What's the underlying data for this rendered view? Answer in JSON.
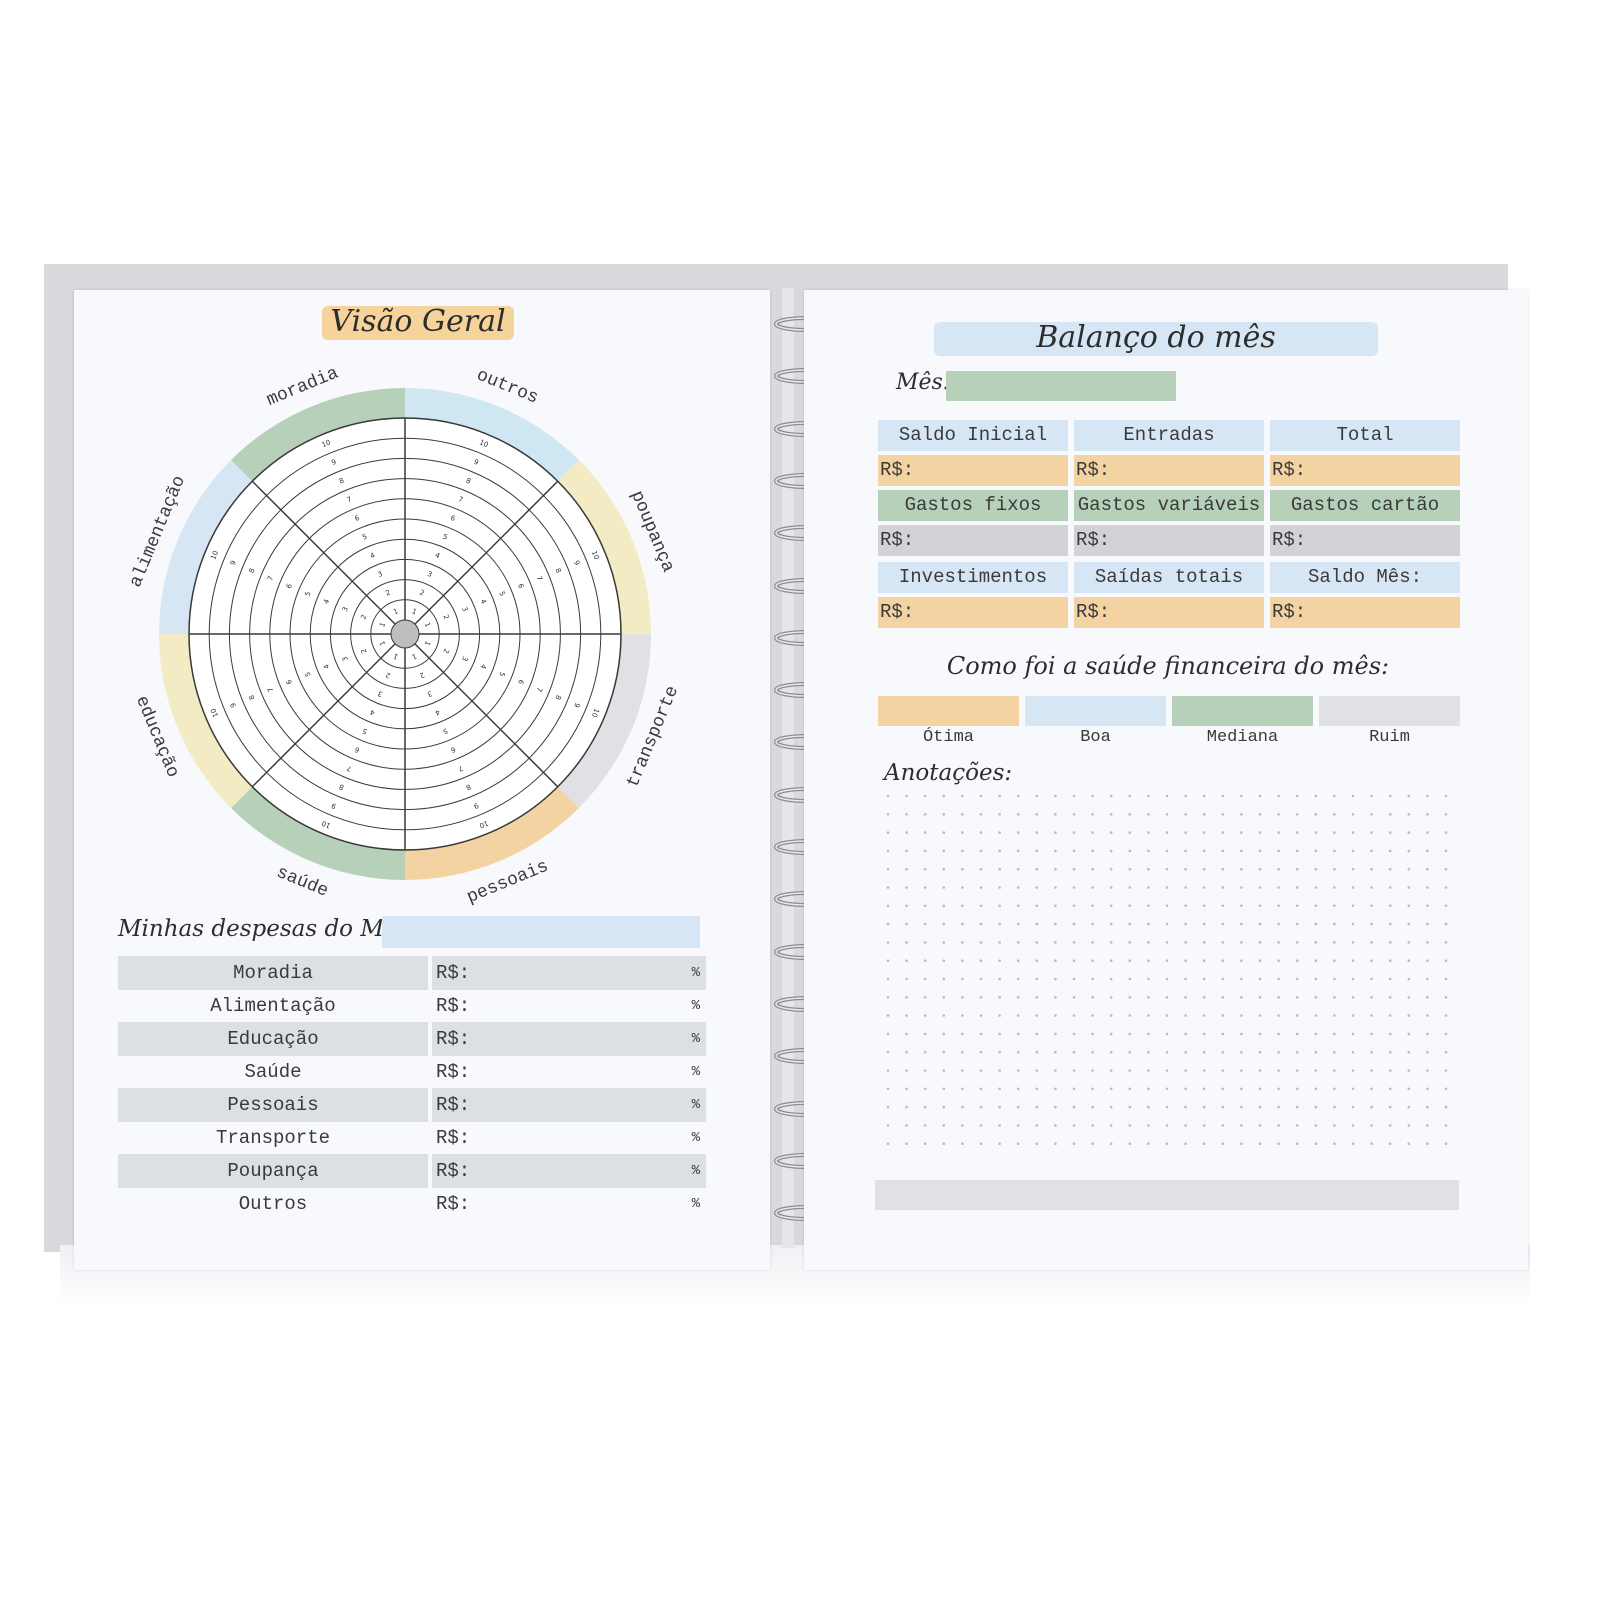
{
  "left_page": {
    "title": "Visão Geral",
    "wheel": {
      "segments": [
        {
          "label": "outros",
          "color": "#cfe7f3"
        },
        {
          "label": "poupança",
          "color": "#f3ebc3"
        },
        {
          "label": "transporte",
          "color": "#dfe1e4"
        },
        {
          "label": "pessoais",
          "color": "#f4d3a2"
        },
        {
          "label": "saúde",
          "color": "#b7d0b9"
        },
        {
          "label": "educação",
          "color": "#f3ebc3"
        },
        {
          "label": "alimentação",
          "color": "#d7e6f4"
        },
        {
          "label": "moradia",
          "color": "#b7d0b9"
        }
      ],
      "scale": [
        1,
        2,
        3,
        4,
        5,
        6,
        7,
        8,
        9,
        10
      ]
    },
    "expenses_label": "Minhas despesas do Mês :",
    "expenses": [
      {
        "category": "Moradia",
        "value_label": "R$:",
        "percent": "%"
      },
      {
        "category": "Alimentação",
        "value_label": "R$:",
        "percent": "%"
      },
      {
        "category": "Educação",
        "value_label": "R$:",
        "percent": "%"
      },
      {
        "category": "Saúde",
        "value_label": "R$:",
        "percent": "%"
      },
      {
        "category": "Pessoais",
        "value_label": "R$:",
        "percent": "%"
      },
      {
        "category": "Transporte",
        "value_label": "R$:",
        "percent": "%"
      },
      {
        "category": "Poupança",
        "value_label": "R$:",
        "percent": "%"
      },
      {
        "category": "Outros",
        "value_label": "R$:",
        "percent": "%"
      }
    ]
  },
  "right_page": {
    "title": "Balanço do mês",
    "month_label": "Mês:",
    "summary": [
      {
        "header": "Saldo Inicial",
        "value": "R$:"
      },
      {
        "header": "Entradas",
        "value": "R$:"
      },
      {
        "header": "Total",
        "value": "R$:"
      },
      {
        "header": "Gastos fixos",
        "value": "R$:"
      },
      {
        "header": "Gastos variáveis",
        "value": "R$:"
      },
      {
        "header": "Gastos cartão",
        "value": "R$:"
      },
      {
        "header": "Investimentos",
        "value": "R$:"
      },
      {
        "header": "Saídas totais",
        "value": "R$:"
      },
      {
        "header": "Saldo Mês:",
        "value": "R$:"
      }
    ],
    "health_question": "Como foi a saúde financeira do mês:",
    "health_options": [
      {
        "label": "Ótima",
        "color": "#f4d3a2"
      },
      {
        "label": "Boa",
        "color": "#d7e6f4"
      },
      {
        "label": "Mediana",
        "color": "#b7d0b9"
      },
      {
        "label": "Ruim",
        "color": "#dfe1e4"
      }
    ],
    "notes_label": "Anotações:"
  }
}
